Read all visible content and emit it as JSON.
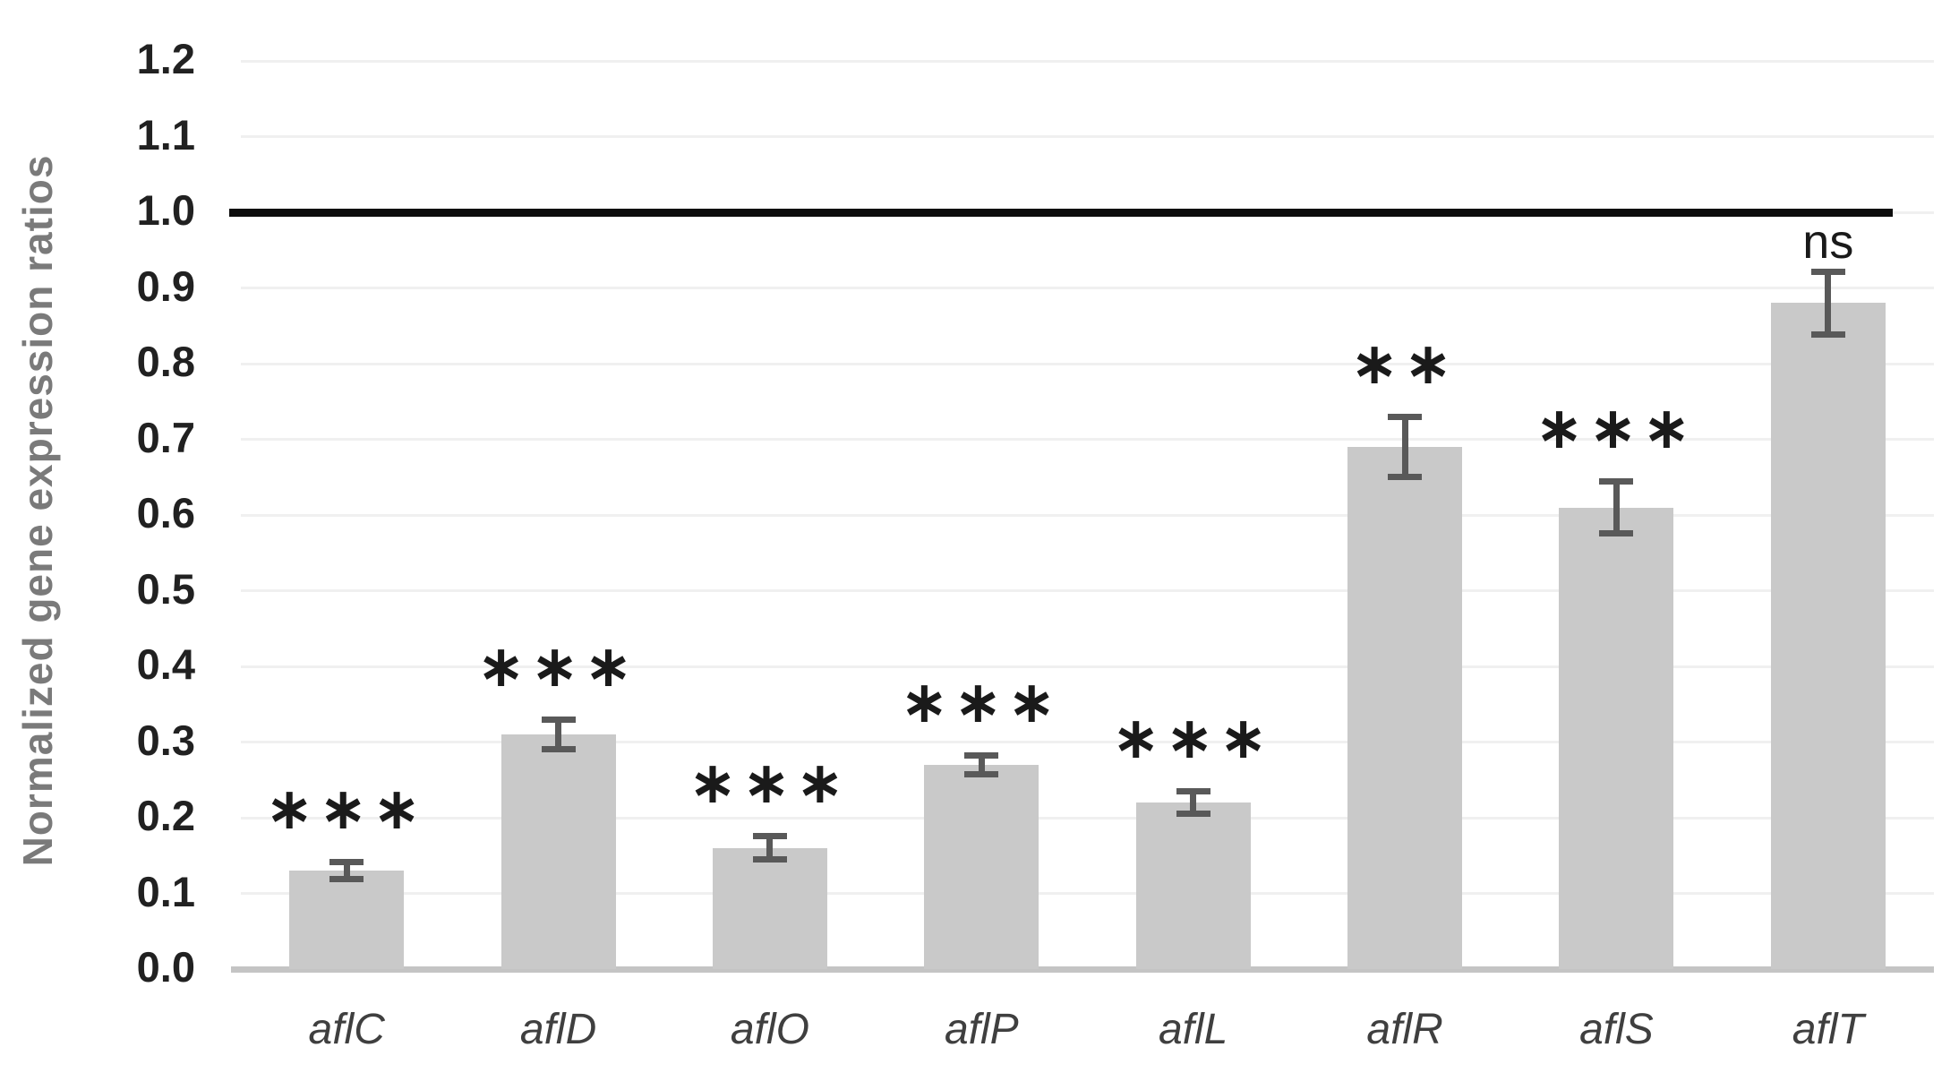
{
  "figure": {
    "background": "#ffffff"
  },
  "chart_data": {
    "type": "bar",
    "title": "",
    "xlabel": "",
    "ylabel": "Normalized gene expression ratios",
    "categories": [
      "aflC",
      "aflD",
      "aflO",
      "aflP",
      "aflL",
      "aflR",
      "aflS",
      "aflT"
    ],
    "values": [
      0.13,
      0.31,
      0.16,
      0.27,
      0.22,
      0.69,
      0.61,
      0.88
    ],
    "error_bars": [
      0.012,
      0.02,
      0.016,
      0.013,
      0.015,
      0.04,
      0.035,
      0.042
    ],
    "significance": [
      "***",
      "***",
      "***",
      "***",
      "***",
      "**",
      "***",
      "ns"
    ],
    "ylim": [
      0.0,
      1.2
    ],
    "ytick_step": 0.1,
    "ytick_labels": [
      "0.0",
      "0.1",
      "0.2",
      "0.3",
      "0.4",
      "0.5",
      "0.6",
      "0.7",
      "0.8",
      "0.9",
      "1.0",
      "1.1",
      "1.2"
    ],
    "reference_line": 1.0,
    "grid": true,
    "legend": false,
    "categories_style": "italic",
    "colors": {
      "bar": "#c9c9c9",
      "error": "#595959",
      "reference_line": "#0d0d0d",
      "gridline": "#f0f0f0",
      "axis_line": "#c4c4c4",
      "tick_label": "#212121",
      "category_label": "#3f3f3f",
      "axis_title": "#7a7a7a",
      "marker": "#1a1a1a"
    }
  }
}
